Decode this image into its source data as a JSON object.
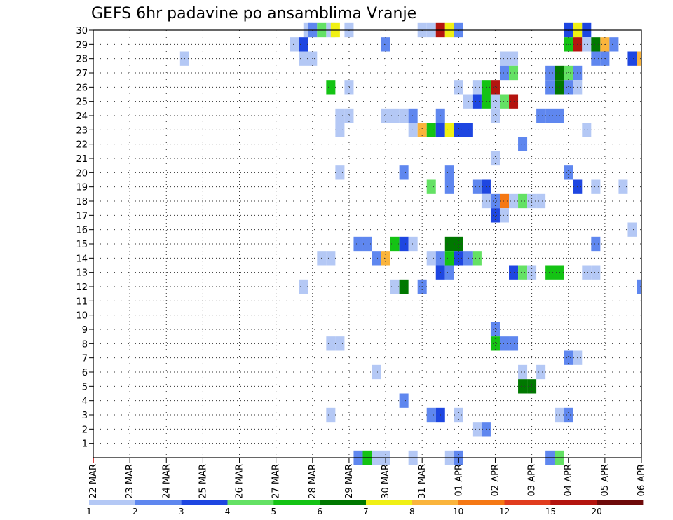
{
  "chart_data": {
    "type": "heatmap",
    "title": "GEFS 6hr padavine po ansamblima Vranje",
    "xlabel": "",
    "ylabel": "",
    "x_tick_labels": [
      "22 MAR",
      "23 MAR",
      "24 MAR",
      "25 MAR",
      "26 MAR",
      "27 MAR",
      "28 MAR",
      "29 MAR",
      "30 MAR",
      "31 MAR",
      "01 APR",
      "02 APR",
      "03 APR",
      "04 APR",
      "05 APR",
      "06 APR"
    ],
    "y_tick_labels": [
      "1",
      "2",
      "3",
      "4",
      "5",
      "6",
      "7",
      "8",
      "9",
      "10",
      "11",
      "12",
      "13",
      "14",
      "15",
      "16",
      "17",
      "18",
      "19",
      "20",
      "21",
      "22",
      "23",
      "24",
      "25",
      "26",
      "27",
      "28",
      "29",
      "30"
    ],
    "xlim": [
      0,
      60
    ],
    "ylim": [
      0,
      30
    ],
    "grid": true,
    "legend_placement": "bottom",
    "legend": {
      "labels": [
        "1",
        "2",
        "3",
        "4",
        "5",
        "6",
        "7",
        "8",
        "10",
        "12",
        "15",
        "20"
      ],
      "colors": [
        "#b4c8f5",
        "#5f87ef",
        "#1e46e1",
        "#64e164",
        "#14c314",
        "#007800",
        "#f0f014",
        "#fab43c",
        "#f57814",
        "#e13c1e",
        "#b4140f",
        "#6e0a0a"
      ]
    },
    "cells": [
      [
        23.5,
        30,
        1
      ],
      [
        24,
        30,
        2
      ],
      [
        25,
        30,
        4
      ],
      [
        26,
        30,
        1
      ],
      [
        26.5,
        30,
        7
      ],
      [
        28,
        30,
        1
      ],
      [
        36,
        30,
        1
      ],
      [
        37,
        30,
        1
      ],
      [
        38,
        30,
        11
      ],
      [
        39,
        30,
        7
      ],
      [
        40,
        30,
        2
      ],
      [
        52,
        30,
        3
      ],
      [
        53,
        30,
        7
      ],
      [
        54,
        30,
        3
      ],
      [
        22,
        29,
        1
      ],
      [
        23,
        29,
        3
      ],
      [
        32,
        29,
        2
      ],
      [
        52,
        29,
        5
      ],
      [
        53,
        29,
        11
      ],
      [
        54,
        29,
        1
      ],
      [
        55,
        29,
        6
      ],
      [
        56,
        29,
        8
      ],
      [
        57,
        29,
        2
      ],
      [
        10,
        28,
        1
      ],
      [
        23,
        28,
        1
      ],
      [
        24,
        28,
        1
      ],
      [
        45,
        28,
        1
      ],
      [
        46,
        28,
        1
      ],
      [
        55,
        28,
        2
      ],
      [
        56,
        28,
        2
      ],
      [
        59,
        28,
        3
      ],
      [
        60,
        28,
        8
      ],
      [
        45,
        27,
        2
      ],
      [
        46,
        27,
        4
      ],
      [
        50,
        27,
        2
      ],
      [
        51,
        27,
        6
      ],
      [
        52,
        27,
        4
      ],
      [
        53,
        27,
        2
      ],
      [
        26,
        26,
        5
      ],
      [
        28,
        26,
        1
      ],
      [
        40,
        26,
        1
      ],
      [
        42,
        26,
        1
      ],
      [
        43,
        26,
        5
      ],
      [
        44,
        26,
        11
      ],
      [
        50,
        26,
        2
      ],
      [
        51,
        26,
        6
      ],
      [
        52,
        26,
        2
      ],
      [
        53,
        26,
        1
      ],
      [
        41,
        25,
        1
      ],
      [
        42,
        25,
        3
      ],
      [
        43,
        25,
        5
      ],
      [
        44,
        25,
        1
      ],
      [
        45,
        25,
        4
      ],
      [
        46,
        25,
        11
      ],
      [
        27,
        24,
        1
      ],
      [
        28,
        24,
        1
      ],
      [
        32,
        24,
        1
      ],
      [
        33,
        24,
        1
      ],
      [
        34,
        24,
        1
      ],
      [
        35,
        24,
        2
      ],
      [
        38,
        24,
        2
      ],
      [
        44,
        24,
        1
      ],
      [
        49,
        24,
        2
      ],
      [
        50,
        24,
        2
      ],
      [
        51,
        24,
        2
      ],
      [
        27,
        23,
        1
      ],
      [
        35,
        23,
        1
      ],
      [
        36,
        23,
        8
      ],
      [
        37,
        23,
        5
      ],
      [
        38,
        23,
        3
      ],
      [
        39,
        23,
        7
      ],
      [
        40,
        23,
        3
      ],
      [
        41,
        23,
        3
      ],
      [
        54,
        23,
        1
      ],
      [
        47,
        22,
        2
      ],
      [
        44,
        21,
        1
      ],
      [
        27,
        20,
        1
      ],
      [
        34,
        20,
        2
      ],
      [
        39,
        20,
        2
      ],
      [
        52,
        20,
        2
      ],
      [
        37,
        19,
        4
      ],
      [
        39,
        19,
        2
      ],
      [
        42,
        19,
        2
      ],
      [
        43,
        19,
        3
      ],
      [
        53,
        19,
        3
      ],
      [
        55,
        19,
        1
      ],
      [
        58,
        19,
        1
      ],
      [
        43,
        18,
        1
      ],
      [
        44,
        18,
        2
      ],
      [
        45,
        18,
        9
      ],
      [
        46,
        18,
        1
      ],
      [
        47,
        18,
        4
      ],
      [
        48,
        18,
        1
      ],
      [
        49,
        18,
        1
      ],
      [
        44,
        17,
        3
      ],
      [
        45,
        17,
        1
      ],
      [
        59,
        16,
        1
      ],
      [
        29,
        15,
        2
      ],
      [
        30,
        15,
        2
      ],
      [
        33,
        15,
        5
      ],
      [
        34,
        15,
        3
      ],
      [
        35,
        15,
        1
      ],
      [
        39,
        15,
        6
      ],
      [
        40,
        15,
        6
      ],
      [
        55,
        15,
        2
      ],
      [
        25,
        14,
        1
      ],
      [
        26,
        14,
        1
      ],
      [
        31,
        14,
        2
      ],
      [
        32,
        14,
        8
      ],
      [
        37,
        14,
        1
      ],
      [
        38,
        14,
        2
      ],
      [
        39,
        14,
        5
      ],
      [
        40,
        14,
        3
      ],
      [
        41,
        14,
        2
      ],
      [
        42,
        14,
        4
      ],
      [
        38,
        13,
        3
      ],
      [
        39,
        13,
        2
      ],
      [
        46,
        13,
        3
      ],
      [
        47,
        13,
        4
      ],
      [
        48,
        13,
        1
      ],
      [
        50,
        13,
        5
      ],
      [
        51,
        13,
        5
      ],
      [
        54,
        13,
        1
      ],
      [
        55,
        13,
        1
      ],
      [
        23,
        12,
        1
      ],
      [
        33,
        12,
        1
      ],
      [
        34,
        12,
        6
      ],
      [
        36,
        12,
        2
      ],
      [
        60,
        12,
        2
      ],
      [
        44,
        9,
        2
      ],
      [
        26,
        8,
        1
      ],
      [
        27,
        8,
        1
      ],
      [
        44,
        8,
        5
      ],
      [
        45,
        8,
        2
      ],
      [
        46,
        8,
        2
      ],
      [
        52,
        7,
        2
      ],
      [
        53,
        7,
        1
      ],
      [
        31,
        6,
        1
      ],
      [
        47,
        6,
        1
      ],
      [
        49,
        6,
        1
      ],
      [
        47,
        5,
        6
      ],
      [
        48,
        5,
        6
      ],
      [
        34,
        4,
        2
      ],
      [
        26,
        3,
        1
      ],
      [
        37,
        3,
        2
      ],
      [
        38,
        3,
        3
      ],
      [
        40,
        3,
        1
      ],
      [
        51,
        3,
        1
      ],
      [
        52,
        3,
        2
      ],
      [
        42,
        2,
        1
      ],
      [
        43,
        2,
        2
      ],
      [
        29,
        0,
        2
      ],
      [
        30,
        0,
        5
      ],
      [
        31,
        0,
        1
      ],
      [
        32,
        0,
        1
      ],
      [
        35,
        0,
        1
      ],
      [
        39,
        0,
        1
      ],
      [
        40,
        0,
        2
      ],
      [
        50,
        0,
        2
      ],
      [
        51,
        0,
        4
      ]
    ]
  }
}
